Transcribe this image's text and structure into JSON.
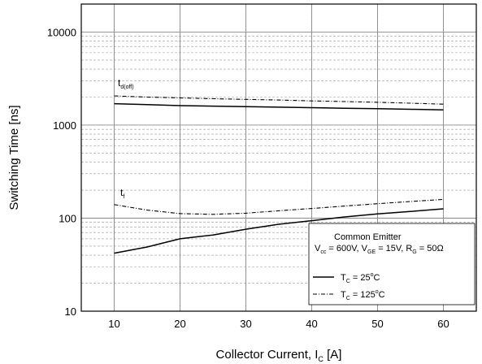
{
  "chart_data": {
    "type": "line",
    "title": "",
    "xlabel": "Collector Current, I",
    "xlabel_sub": "C",
    "xlabel_unit": "[A]",
    "ylabel": "Switching Time [ns]",
    "xlim": [
      5,
      65
    ],
    "ylim": [
      10,
      20000
    ],
    "yscale": "log",
    "grid": true,
    "x_ticks": [
      10,
      20,
      30,
      40,
      50,
      60
    ],
    "y_ticks": [
      10,
      100,
      1000,
      10000
    ],
    "x": [
      10,
      15,
      20,
      25,
      30,
      35,
      40,
      45,
      50,
      55,
      60
    ],
    "series": [
      {
        "name": "T_C = 25°C",
        "curve": "t_d(off)",
        "style": "solid",
        "values": [
          1700,
          1660,
          1620,
          1600,
          1580,
          1560,
          1540,
          1520,
          1500,
          1480,
          1460
        ]
      },
      {
        "name": "T_C = 125°C",
        "curve": "t_d(off)",
        "style": "dashdot",
        "values": [
          2060,
          2000,
          1960,
          1920,
          1890,
          1860,
          1820,
          1790,
          1760,
          1720,
          1680
        ]
      },
      {
        "name": "T_C = 25°C",
        "curve": "t_f",
        "style": "solid",
        "values": [
          42,
          49,
          60,
          66,
          76,
          86,
          94,
          103,
          111,
          118,
          126
        ]
      },
      {
        "name": "T_C = 125°C",
        "curve": "t_f",
        "style": "dashdot",
        "values": [
          140,
          122,
          112,
          110,
          113,
          120,
          127,
          135,
          143,
          151,
          159
        ]
      }
    ],
    "curve_labels": {
      "tdoff_main": "t",
      "tdoff_sub": "d(off)",
      "tf_main": "t",
      "tf_sub": "f"
    },
    "legend": {
      "placement": "bottom-right",
      "title": "Common Emitter",
      "cond_V1": "V",
      "cond_V1_sub": "cc",
      "cond_V1_val": " = 600V, V",
      "cond_V2_sub": "GE",
      "cond_V2_val": " = 15V, R",
      "cond_R_sub": "G",
      "cond_R_val": " = 50Ω",
      "entries": [
        {
          "prefix": "T",
          "sub": "C",
          "value": " = 25",
          "sup": "o",
          "unit": "C",
          "style": "solid"
        },
        {
          "prefix": "T",
          "sub": "C",
          "value": " = 125",
          "sup": "o",
          "unit": "C",
          "style": "dashdot"
        }
      ]
    }
  }
}
